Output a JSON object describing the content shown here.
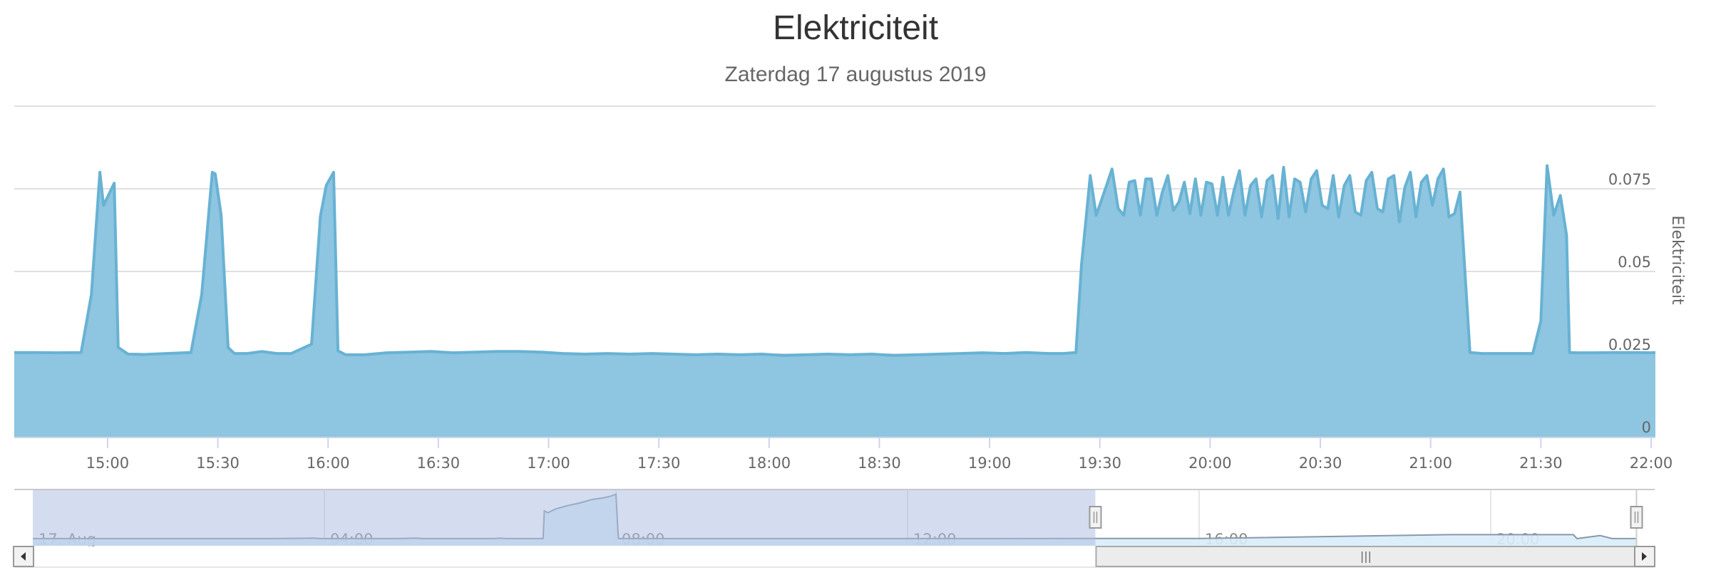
{
  "header": {
    "title": "Elektriciteit",
    "subtitle": "Zaterdag 17 augustus 2019"
  },
  "colors": {
    "area_fill": "#8ec5e0",
    "area_line": "#68b2d3",
    "gridline": "#e0e0e0",
    "navigator_mask": "#cfd9eb",
    "navigator_line": "#8a98ab",
    "navigator_fill": "#c0d3ea",
    "scrollbar_bg": "#eeeeee",
    "scrollbar_border": "#999999"
  },
  "chart_data": {
    "type": "area",
    "title": "Elektriciteit",
    "subtitle": "Zaterdag 17 augustus 2019",
    "xlabel": "",
    "ylabel": "Elektriciteit",
    "ylim": [
      0,
      0.1
    ],
    "xlim": [
      "14:34",
      "22:00"
    ],
    "grid": true,
    "legend": "none",
    "y_ticks": [
      "0",
      "0.025",
      "0.05",
      "0.075"
    ],
    "x_ticks": [
      "15:00",
      "15:30",
      "16:00",
      "16:30",
      "17:00",
      "17:30",
      "18:00",
      "18:30",
      "19:00",
      "19:30",
      "20:00",
      "20:30",
      "21:00",
      "21:30",
      "22:00"
    ],
    "series": [
      {
        "name": "Elektriciteit",
        "x_minutes": [
          874.6,
          880,
          886,
          892.8,
          895.6,
          897.9,
          898.9,
          901.8,
          902.9,
          905.6,
          910,
          916,
          922.7,
          925.6,
          928.5,
          929.3,
          930.9,
          932.8,
          934.5,
          938,
          942,
          946,
          950,
          955.5,
          957.9,
          959.5,
          961.5,
          962.7,
          964.8,
          970,
          976,
          982,
          988,
          994,
          1000,
          1006,
          1012,
          1018,
          1024,
          1030,
          1036,
          1042,
          1048,
          1054,
          1060,
          1066,
          1072,
          1078,
          1084,
          1090,
          1096,
          1102,
          1108,
          1114,
          1120,
          1126,
          1132,
          1138,
          1144,
          1150,
          1156,
          1160,
          1163.5,
          1165,
          1167.4,
          1169,
          1171.5,
          1173.3,
          1175,
          1176.5,
          1178,
          1179.5,
          1181,
          1182.5,
          1184,
          1185.5,
          1187,
          1188.5,
          1190,
          1191.5,
          1193,
          1194.5,
          1196,
          1197.5,
          1199,
          1200.5,
          1202,
          1203.5,
          1205,
          1206.5,
          1208,
          1209.5,
          1211,
          1212.5,
          1214,
          1215.5,
          1217,
          1218.5,
          1220,
          1221.5,
          1223,
          1224.5,
          1226,
          1227.5,
          1229,
          1230.5,
          1232,
          1233.5,
          1235,
          1236.5,
          1238,
          1239.5,
          1241,
          1242.5,
          1244,
          1245.5,
          1247,
          1248.5,
          1250,
          1251.5,
          1253,
          1254.5,
          1256,
          1257.5,
          1259,
          1260.5,
          1262,
          1263.5,
          1265,
          1266.5,
          1268,
          1270.7,
          1274,
          1280,
          1286,
          1287.8,
          1290,
          1291.7,
          1293.5,
          1295.3,
          1297,
          1297.8,
          1300,
          1305,
          1310,
          1315,
          1320
        ],
        "values": [
          0.0255,
          0.0255,
          0.0254,
          0.0255,
          0.043,
          0.08,
          0.07,
          0.0767,
          0.027,
          0.025,
          0.0249,
          0.0252,
          0.0255,
          0.043,
          0.08,
          0.0795,
          0.067,
          0.027,
          0.0252,
          0.0252,
          0.0258,
          0.0252,
          0.0252,
          0.028,
          0.0667,
          0.076,
          0.08,
          0.026,
          0.0248,
          0.0248,
          0.0254,
          0.0256,
          0.0258,
          0.0254,
          0.0256,
          0.0258,
          0.0258,
          0.0256,
          0.0252,
          0.025,
          0.0252,
          0.025,
          0.0252,
          0.025,
          0.0248,
          0.025,
          0.0248,
          0.025,
          0.0246,
          0.0248,
          0.025,
          0.0248,
          0.025,
          0.0246,
          0.0248,
          0.025,
          0.0252,
          0.0254,
          0.0252,
          0.0255,
          0.0252,
          0.0252,
          0.0255,
          0.052,
          0.079,
          0.067,
          0.075,
          0.081,
          0.069,
          0.067,
          0.077,
          0.0775,
          0.067,
          0.078,
          0.078,
          0.067,
          0.074,
          0.079,
          0.0685,
          0.071,
          0.077,
          0.0675,
          0.078,
          0.067,
          0.077,
          0.0765,
          0.067,
          0.0785,
          0.067,
          0.0745,
          0.0805,
          0.067,
          0.076,
          0.078,
          0.0665,
          0.0775,
          0.079,
          0.066,
          0.0815,
          0.0665,
          0.078,
          0.077,
          0.068,
          0.078,
          0.0805,
          0.07,
          0.069,
          0.079,
          0.0665,
          0.076,
          0.079,
          0.068,
          0.067,
          0.0775,
          0.08,
          0.069,
          0.068,
          0.078,
          0.079,
          0.065,
          0.0755,
          0.08,
          0.0665,
          0.077,
          0.079,
          0.07,
          0.078,
          0.081,
          0.0665,
          0.0675,
          0.074,
          0.0255,
          0.0252,
          0.0252,
          0.0252,
          0.0252,
          0.035,
          0.082,
          0.067,
          0.073,
          0.061,
          0.0255,
          0.0254,
          0.0254,
          0.0255,
          0.0255,
          0.0254,
          0.0255
        ]
      }
    ]
  },
  "main_axis": {
    "y_ticks": [
      {
        "label": "0",
        "value": 0
      },
      {
        "label": "0.025",
        "value": 0.025
      },
      {
        "label": "0.05",
        "value": 0.05
      },
      {
        "label": "0.075",
        "value": 0.075
      }
    ],
    "x_ticks": [
      {
        "label": "15:00",
        "minutes": 900
      },
      {
        "label": "15:30",
        "minutes": 930
      },
      {
        "label": "16:00",
        "minutes": 960
      },
      {
        "label": "16:30",
        "minutes": 990
      },
      {
        "label": "17:00",
        "minutes": 1020
      },
      {
        "label": "17:30",
        "minutes": 1050
      },
      {
        "label": "18:00",
        "minutes": 1080
      },
      {
        "label": "18:30",
        "minutes": 1110
      },
      {
        "label": "19:00",
        "minutes": 1140
      },
      {
        "label": "19:30",
        "minutes": 1170
      },
      {
        "label": "20:00",
        "minutes": 1200
      },
      {
        "label": "20:30",
        "minutes": 1230
      },
      {
        "label": "21:00",
        "minutes": 1260
      },
      {
        "label": "21:30",
        "minutes": 1290
      },
      {
        "label": "22:00",
        "minutes": 1320
      }
    ],
    "y_axis_title": "Elektriciteit"
  },
  "navigator": {
    "x_labels": [
      {
        "label": "17. Aug",
        "minutes": 0
      },
      {
        "label": "04:00",
        "minutes": 240
      },
      {
        "label": "08:00",
        "minutes": 480
      },
      {
        "label": "12:00",
        "minutes": 720
      },
      {
        "label": "16:00",
        "minutes": 960
      },
      {
        "label": "20:00",
        "minutes": 1200
      }
    ],
    "range_start": "14:34",
    "range_end": "22:00",
    "range_start_minutes": 874.6,
    "range_end_minutes": 1320,
    "series_minutes": [
      0,
      200,
      232,
      236,
      240,
      300,
      316,
      320,
      330,
      360,
      380,
      384,
      390,
      420,
      421,
      424,
      430,
      440,
      450,
      460,
      470,
      476,
      480,
      482,
      900,
      930,
      960,
      1167,
      1200,
      1212,
      1268,
      1271,
      1290,
      1300,
      1320
    ],
    "series_values": [
      0.025,
      0.025,
      0.03,
      0.025,
      0.025,
      0.025,
      0.03,
      0.025,
      0.025,
      0.025,
      0.025,
      0.03,
      0.025,
      0.025,
      0.34,
      0.32,
      0.36,
      0.4,
      0.43,
      0.47,
      0.49,
      0.51,
      0.53,
      0.025,
      0.026,
      0.026,
      0.026,
      0.07,
      0.07,
      0.07,
      0.07,
      0.025,
      0.06,
      0.025,
      0.025
    ],
    "y_max": 0.56
  },
  "scrollbar": {
    "left_arrow": "◀",
    "right_arrow": "▶",
    "thumb_grip": "|||"
  }
}
